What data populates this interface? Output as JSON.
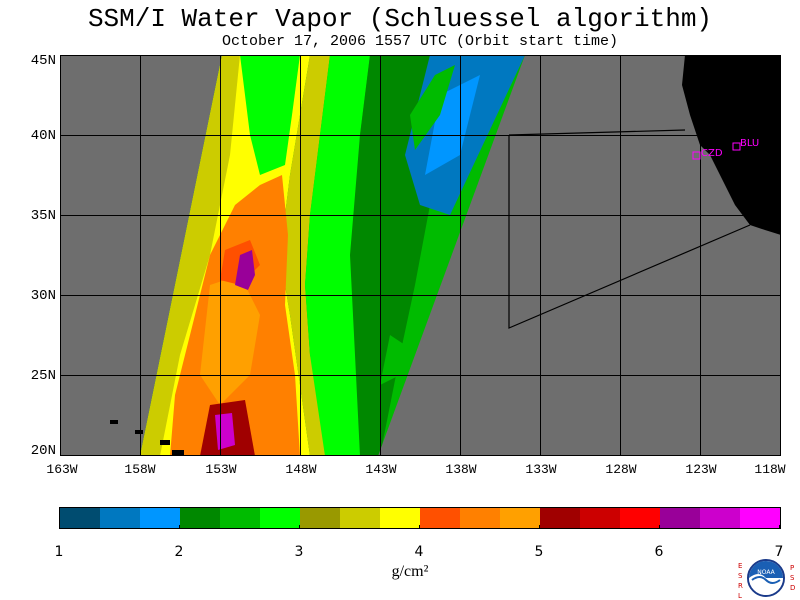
{
  "title": "SSM/I Water Vapor (Schluessel algorithm)",
  "subtitle": "October 17, 2006  1557 UTC  (Orbit start time)",
  "lat_labels": [
    "45N",
    "40N",
    "35N",
    "30N",
    "25N",
    "20N"
  ],
  "lon_labels": [
    "163W",
    "158W",
    "153W",
    "148W",
    "143W",
    "138W",
    "133W",
    "128W",
    "123W",
    "118W"
  ],
  "colorbar": {
    "colors": [
      "#004c70",
      "#0078c0",
      "#0096ff",
      "#008800",
      "#00bb00",
      "#00ff00",
      "#999900",
      "#cccc00",
      "#ffff00",
      "#ff5000",
      "#ff8000",
      "#ffa000",
      "#a00000",
      "#cc0000",
      "#ff0000",
      "#990099",
      "#cc00cc",
      "#ff00ff"
    ],
    "tick_labels": [
      "1",
      "2",
      "3",
      "4",
      "5",
      "6",
      "7"
    ],
    "units": "g/cm²"
  },
  "sites": [
    {
      "label": "CZD"
    },
    {
      "label": "BLU"
    }
  ],
  "logo_text": {
    "left": "ESRL",
    "right": "PSD",
    "center": "NOAA"
  },
  "map_colors": {
    "ocean": "#6e6e6e",
    "land": "#000000",
    "grid": "#000000",
    "site": "#ff00ff"
  }
}
